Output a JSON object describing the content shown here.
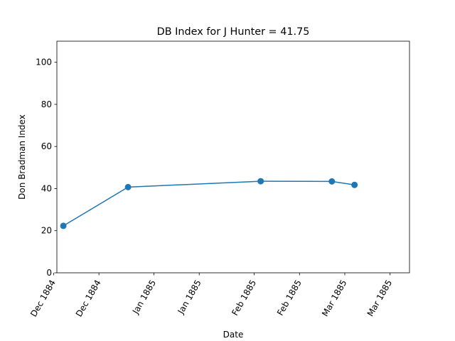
{
  "chart_data": {
    "type": "line",
    "title": "DB Index for J Hunter = 41.75",
    "xlabel": "Date",
    "ylabel": "Don Bradman Index",
    "ylim": [
      0,
      110
    ],
    "xlim": [
      "1884-12-02",
      "1885-03-21"
    ],
    "x_ticks": [
      {
        "date": "1884-12-01",
        "label": "Dec 1884"
      },
      {
        "date": "1884-12-15",
        "label": "Dec 1884"
      },
      {
        "date": "1885-01-01",
        "label": "Jan 1885"
      },
      {
        "date": "1885-01-15",
        "label": "Jan 1885"
      },
      {
        "date": "1885-02-01",
        "label": "Feb 1885"
      },
      {
        "date": "1885-02-15",
        "label": "Feb 1885"
      },
      {
        "date": "1885-03-01",
        "label": "Mar 1885"
      },
      {
        "date": "1885-03-15",
        "label": "Mar 1885"
      }
    ],
    "y_ticks": [
      0,
      20,
      40,
      60,
      80,
      100
    ],
    "grid": false,
    "series": [
      {
        "color": "#1f77b4",
        "marker": "circle",
        "points": [
          {
            "x": "1884-12-04",
            "y": 22.3
          },
          {
            "x": "1884-12-24",
            "y": 40.7
          },
          {
            "x": "1885-02-03",
            "y": 43.5
          },
          {
            "x": "1885-02-25",
            "y": 43.4
          },
          {
            "x": "1885-03-04",
            "y": 41.75
          }
        ]
      }
    ]
  }
}
